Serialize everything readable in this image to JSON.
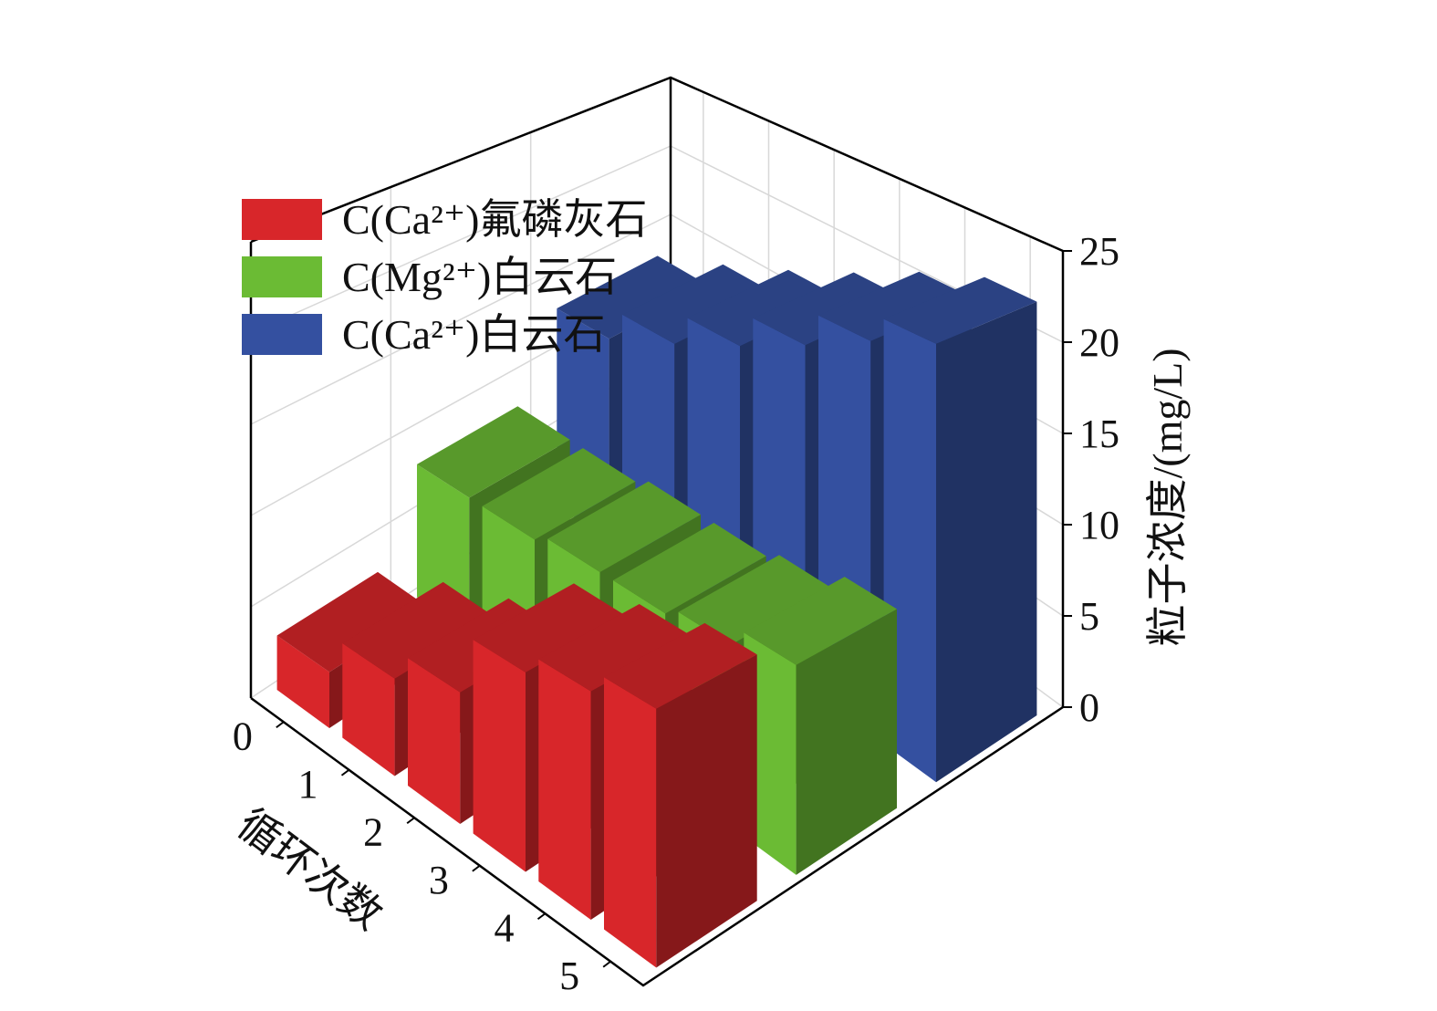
{
  "chart_data": {
    "type": "bar3d",
    "x_label": "循环次数",
    "y_label": "粒子浓度/(mg/L)",
    "categories": [
      "0",
      "1",
      "2",
      "3",
      "4",
      "5"
    ],
    "ylim": [
      0,
      25
    ],
    "yticks": [
      0,
      5,
      10,
      15,
      20,
      25
    ],
    "grid": true,
    "series": [
      {
        "name": "C(Ca²⁺)氟磷灰石",
        "color": "#d8262a",
        "values": [
          3,
          5,
          6.5,
          9.5,
          10.5,
          11.5
        ]
      },
      {
        "name": "C(Mg²⁺)白云石",
        "color": "#6bbb34",
        "values": [
          8,
          8,
          8.5,
          8.5,
          9,
          10
        ]
      },
      {
        "name": "C(Ca²⁺)白云石",
        "color": "#3450a0",
        "values": [
          13,
          15,
          17,
          19,
          21,
          22.5
        ]
      }
    ]
  }
}
